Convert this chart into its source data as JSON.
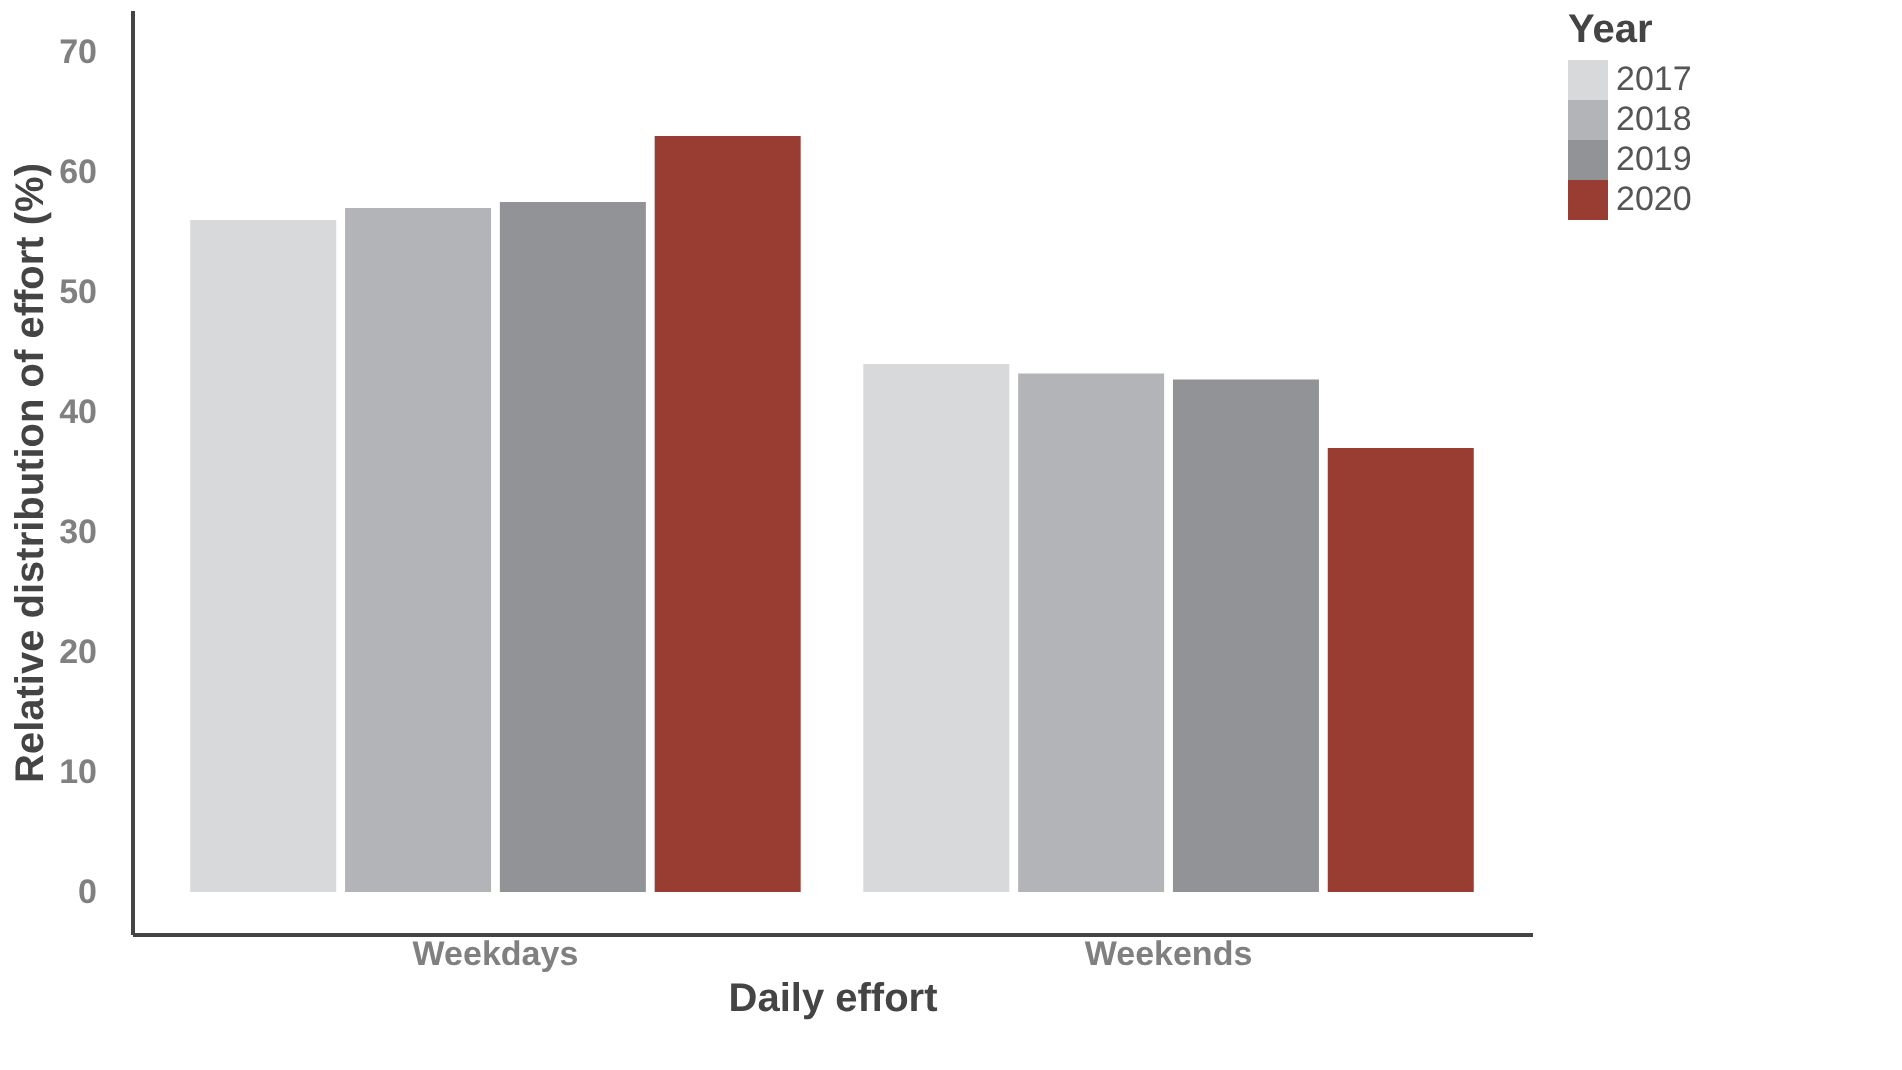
{
  "chart_data": {
    "type": "bar",
    "xlabel": "Daily effort",
    "ylabel": "Relative distribution of effort (%)",
    "legend_title": "Year",
    "categories": [
      "Weekdays",
      "Weekends"
    ],
    "series": [
      {
        "name": "2017",
        "color": "#d8d9db",
        "values": [
          56,
          44
        ]
      },
      {
        "name": "2018",
        "color": "#b3b4b7",
        "values": [
          57,
          43.2
        ]
      },
      {
        "name": "2019",
        "color": "#929396",
        "values": [
          57.5,
          42.7
        ]
      },
      {
        "name": "2020",
        "color": "#993c31",
        "values": [
          63,
          37
        ]
      }
    ],
    "ylim": [
      -3.5,
      73.5
    ],
    "yticks": [
      0,
      10,
      20,
      30,
      40,
      50,
      60,
      70
    ],
    "grid": false,
    "legend": "right"
  }
}
